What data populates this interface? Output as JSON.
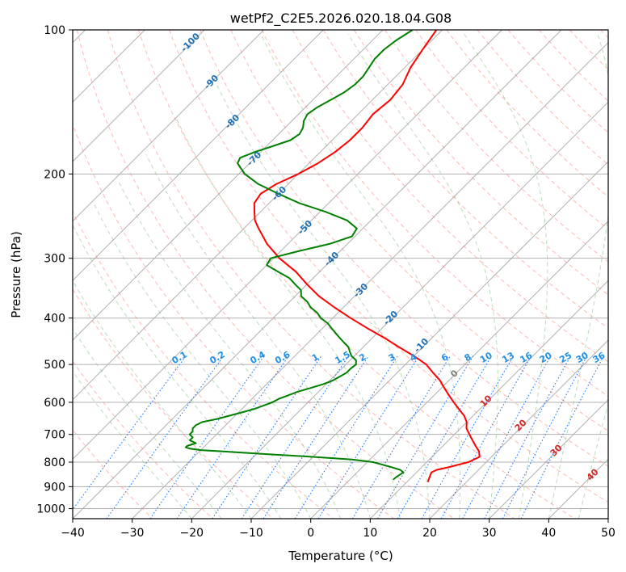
{
  "chart_data": {
    "type": "line",
    "title": "wetPf2_C2E5.2026.020.18.04.G08",
    "xlabel": "Temperature (°C)",
    "ylabel": "Pressure (hPa)",
    "xlim": [
      -40,
      50
    ],
    "ylim": [
      1050,
      100
    ],
    "x_ticks": [
      -40,
      -30,
      -20,
      -10,
      0,
      10,
      20,
      30,
      40,
      50
    ],
    "y_ticks": [
      100,
      200,
      300,
      400,
      500,
      600,
      700,
      800,
      900,
      1000
    ],
    "x_tick_labels": [
      "−40",
      "−30",
      "−20",
      "−10",
      "0",
      "10",
      "20",
      "30",
      "40",
      "50"
    ],
    "y_tick_labels": [
      "100",
      "200",
      "300",
      "400",
      "500",
      "600",
      "700",
      "800",
      "900",
      "1000"
    ],
    "y_scale": "log",
    "skew": "isotherms tilted 45 degrees",
    "grid": true,
    "colors": {
      "temperature": "#ff0000",
      "dewpoint": "#008000",
      "dry_adiabats": "#fa8072",
      "moist_adiabats": "#7fbf7f",
      "mixing_ratio": "#1f77ff",
      "isotherm": "#808080",
      "isotherm_labels": "#1f6fb4",
      "mixing_labels": "#1f8fe8",
      "wetbulb_labels": "#d62728"
    },
    "series": [
      {
        "name": "Temperature",
        "p": [
          880,
          860,
          840,
          830,
          820,
          800,
          780,
          760,
          740,
          720,
          700,
          680,
          660,
          640,
          620,
          600,
          580,
          560,
          540,
          520,
          500,
          480,
          460,
          440,
          420,
          400,
          380,
          360,
          340,
          320,
          300,
          280,
          260,
          250,
          240,
          230,
          220,
          210,
          200,
          190,
          180,
          170,
          160,
          150,
          140,
          130,
          120,
          110,
          100
        ],
        "t": [
          13.5,
          13,
          12.5,
          13,
          14.5,
          17,
          18,
          17,
          15.5,
          14,
          12.5,
          11,
          10,
          8.5,
          6.5,
          4.5,
          2.5,
          0.5,
          -1.5,
          -4,
          -6.5,
          -10,
          -14,
          -18,
          -22.5,
          -27,
          -31.5,
          -36,
          -40,
          -44,
          -49,
          -53.5,
          -57.5,
          -59.5,
          -61,
          -62.5,
          -63,
          -62,
          -60,
          -58.5,
          -57.5,
          -57,
          -57,
          -57.5,
          -57,
          -57.5,
          -59,
          -60,
          -61
        ]
      },
      {
        "name": "Dewpoint",
        "p": [
          870,
          860,
          850,
          840,
          830,
          820,
          810,
          800,
          790,
          780,
          770,
          760,
          755,
          750,
          745,
          740,
          730,
          720,
          710,
          700,
          690,
          680,
          670,
          660,
          650,
          640,
          630,
          620,
          610,
          600,
          590,
          580,
          570,
          560,
          550,
          540,
          530,
          520,
          510,
          500,
          490,
          480,
          470,
          460,
          450,
          440,
          430,
          420,
          410,
          400,
          390,
          380,
          370,
          360,
          350,
          340,
          330,
          320,
          310,
          300,
          290,
          280,
          270,
          260,
          250,
          240,
          230,
          220,
          210,
          200,
          190,
          185,
          180,
          175,
          170,
          165,
          160,
          155,
          150,
          145,
          140,
          135,
          130,
          125,
          120,
          115,
          110,
          105,
          100
        ],
        "t": [
          7.3,
          7.4,
          7.6,
          7.8,
          6.8,
          5.0,
          3.0,
          1.0,
          -3.0,
          -10.0,
          -18.0,
          -26.0,
          -30.0,
          -32.0,
          -33.0,
          -33.0,
          -32.0,
          -33.5,
          -33.5,
          -34.5,
          -34.5,
          -35.0,
          -35.0,
          -34.5,
          -32.5,
          -31.0,
          -29.5,
          -28.0,
          -27.0,
          -26.0,
          -25.5,
          -24.5,
          -23.5,
          -22.0,
          -20.5,
          -19.5,
          -19.0,
          -18.5,
          -18.5,
          -18.3,
          -19.0,
          -20.5,
          -21.5,
          -22.5,
          -24.0,
          -25.5,
          -27.0,
          -28.5,
          -30.0,
          -32.0,
          -33.5,
          -35.5,
          -37.0,
          -39.0,
          -40.0,
          -42.0,
          -44.0,
          -47.0,
          -50.0,
          -50.5,
          -47.0,
          -43.0,
          -40.5,
          -41.0,
          -44.0,
          -49.0,
          -55.0,
          -60.0,
          -65.0,
          -69.0,
          -72.0,
          -72.5,
          -71.0,
          -69.0,
          -67.0,
          -66.5,
          -67.0,
          -68.0,
          -68.5,
          -68.0,
          -67.0,
          -66.0,
          -65.5,
          -65.5,
          -66.0,
          -66.5,
          -66.5,
          -66.0,
          -65.0
        ]
      }
    ],
    "isotherm_labels": [
      "-100",
      "-90",
      "-80",
      "-70",
      "-60",
      "-50",
      "-40",
      "-30",
      "-20",
      "-10",
      "0"
    ],
    "mixing_ratio_labels": [
      "0.1",
      "0.2",
      "0.4",
      "0.6",
      "1",
      "1.5",
      "2",
      "3",
      "4",
      "6",
      "8",
      "10",
      "13",
      "16",
      "20",
      "25",
      "30",
      "36"
    ],
    "wetbulb_labels": [
      "10",
      "20",
      "30",
      "40"
    ]
  }
}
